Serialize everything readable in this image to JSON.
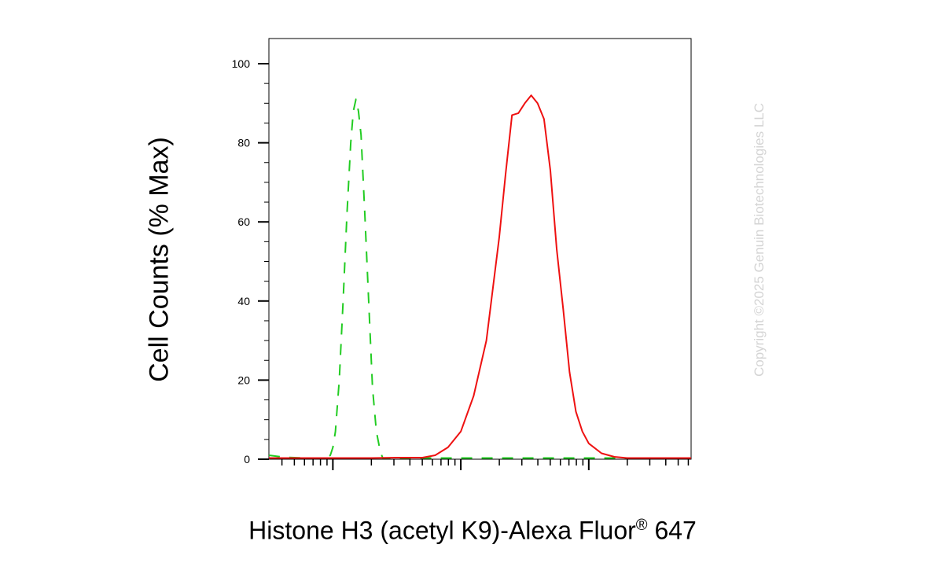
{
  "chart_data": {
    "type": "line",
    "title": "",
    "xlabel": "Histone H3 (acetyl K9)-Alexa Fluor",
    "xlabel_symbol": "®",
    "xlabel_suffix": " 647",
    "ylabel": "Cell Counts (% Max)",
    "x_scale": "log",
    "x_tick_labels": [],
    "y_ticks": [
      0,
      20,
      40,
      60,
      80,
      100
    ],
    "ylim": [
      0,
      105
    ],
    "grid": false,
    "legend": "none",
    "series": [
      {
        "color": "#22cc22",
        "linestyle": "dashed",
        "points": [
          [
            0.0,
            1
          ],
          [
            0.12,
            0.5
          ],
          [
            0.3,
            0.3
          ],
          [
            0.45,
            0.3
          ],
          [
            0.48,
            1
          ],
          [
            0.5,
            3
          ],
          [
            0.52,
            7
          ],
          [
            0.55,
            20
          ],
          [
            0.58,
            40
          ],
          [
            0.61,
            62
          ],
          [
            0.64,
            80
          ],
          [
            0.66,
            88
          ],
          [
            0.68,
            91
          ],
          [
            0.7,
            88
          ],
          [
            0.72,
            82
          ],
          [
            0.75,
            62
          ],
          [
            0.78,
            40
          ],
          [
            0.81,
            18
          ],
          [
            0.84,
            7
          ],
          [
            0.87,
            2
          ],
          [
            0.89,
            0.3
          ],
          [
            1.6,
            0.3
          ],
          [
            2.2,
            0.3
          ],
          [
            3.3,
            0.3
          ]
        ]
      },
      {
        "color": "#ee1111",
        "linestyle": "solid",
        "points": [
          [
            0.0,
            0.3
          ],
          [
            0.8,
            0.3
          ],
          [
            1.0,
            0.4
          ],
          [
            1.1,
            0.4
          ],
          [
            1.2,
            0.4
          ],
          [
            1.3,
            1
          ],
          [
            1.4,
            3
          ],
          [
            1.5,
            7
          ],
          [
            1.6,
            16
          ],
          [
            1.7,
            30
          ],
          [
            1.8,
            56
          ],
          [
            1.85,
            72
          ],
          [
            1.9,
            87
          ],
          [
            1.95,
            87.5
          ],
          [
            2.0,
            90
          ],
          [
            2.05,
            92
          ],
          [
            2.1,
            90
          ],
          [
            2.15,
            86
          ],
          [
            2.2,
            73
          ],
          [
            2.25,
            53
          ],
          [
            2.3,
            38
          ],
          [
            2.35,
            22
          ],
          [
            2.4,
            12
          ],
          [
            2.45,
            7
          ],
          [
            2.5,
            4
          ],
          [
            2.6,
            1.5
          ],
          [
            2.7,
            0.6
          ],
          [
            2.8,
            0.3
          ],
          [
            3.3,
            0.3
          ]
        ]
      }
    ]
  },
  "watermark": "Copyright ©2025 Genuin Biotechnologies LLC",
  "colors": {
    "green": "#22cc22",
    "red": "#ee1111",
    "axis": "#000000"
  }
}
